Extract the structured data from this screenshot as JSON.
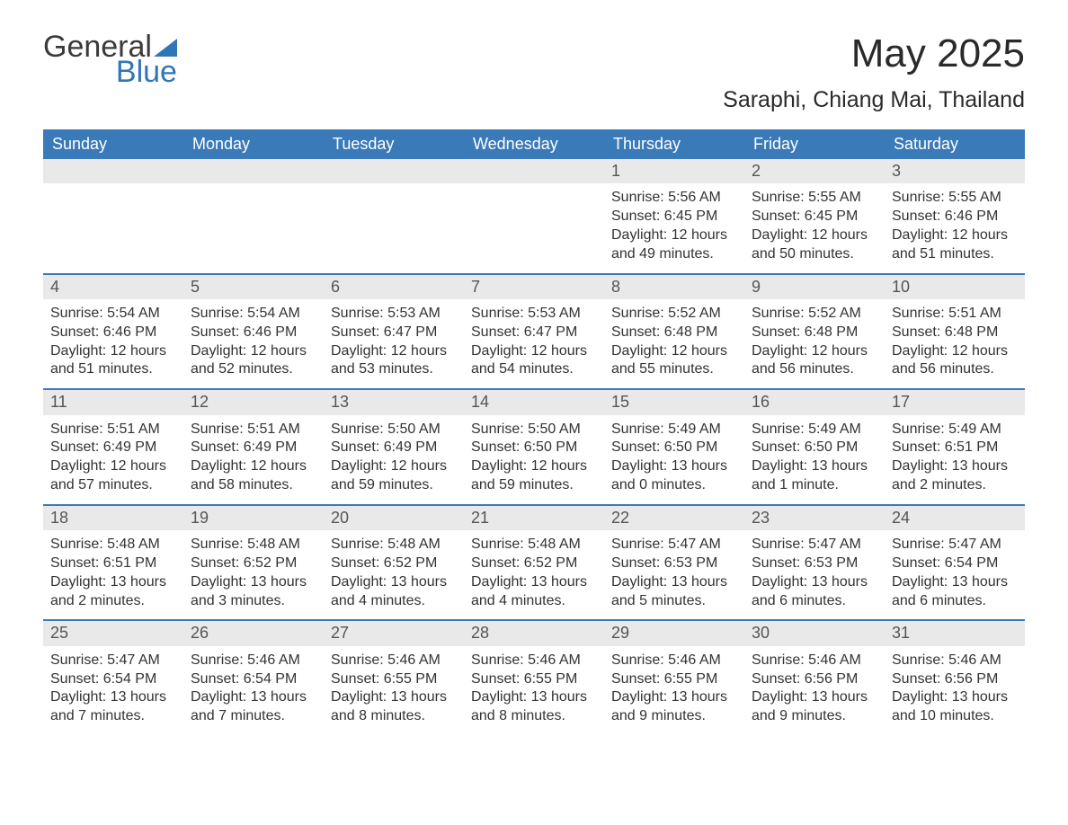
{
  "brand": {
    "part1": "General",
    "part2": "Blue"
  },
  "title": "May 2025",
  "location": "Saraphi, Chiang Mai, Thailand",
  "colors": {
    "header_bg": "#3a7ab8",
    "header_text": "#ffffff",
    "daynum_bg": "#e9e9e9",
    "daynum_text": "#555555",
    "body_text": "#333333",
    "week_border": "#3a7ab8",
    "brand_gray": "#3a3a3a",
    "brand_blue": "#2f76b6"
  },
  "typography": {
    "title_fontsize_pt": 33,
    "location_fontsize_pt": 19,
    "weekday_fontsize_pt": 14,
    "daynum_fontsize_pt": 14,
    "body_fontsize_pt": 12
  },
  "weekdays": [
    "Sunday",
    "Monday",
    "Tuesday",
    "Wednesday",
    "Thursday",
    "Friday",
    "Saturday"
  ],
  "weeks": [
    [
      null,
      null,
      null,
      null,
      {
        "n": "1",
        "sunrise": "5:56 AM",
        "sunset": "6:45 PM",
        "daylight": "12 hours and 49 minutes."
      },
      {
        "n": "2",
        "sunrise": "5:55 AM",
        "sunset": "6:45 PM",
        "daylight": "12 hours and 50 minutes."
      },
      {
        "n": "3",
        "sunrise": "5:55 AM",
        "sunset": "6:46 PM",
        "daylight": "12 hours and 51 minutes."
      }
    ],
    [
      {
        "n": "4",
        "sunrise": "5:54 AM",
        "sunset": "6:46 PM",
        "daylight": "12 hours and 51 minutes."
      },
      {
        "n": "5",
        "sunrise": "5:54 AM",
        "sunset": "6:46 PM",
        "daylight": "12 hours and 52 minutes."
      },
      {
        "n": "6",
        "sunrise": "5:53 AM",
        "sunset": "6:47 PM",
        "daylight": "12 hours and 53 minutes."
      },
      {
        "n": "7",
        "sunrise": "5:53 AM",
        "sunset": "6:47 PM",
        "daylight": "12 hours and 54 minutes."
      },
      {
        "n": "8",
        "sunrise": "5:52 AM",
        "sunset": "6:48 PM",
        "daylight": "12 hours and 55 minutes."
      },
      {
        "n": "9",
        "sunrise": "5:52 AM",
        "sunset": "6:48 PM",
        "daylight": "12 hours and 56 minutes."
      },
      {
        "n": "10",
        "sunrise": "5:51 AM",
        "sunset": "6:48 PM",
        "daylight": "12 hours and 56 minutes."
      }
    ],
    [
      {
        "n": "11",
        "sunrise": "5:51 AM",
        "sunset": "6:49 PM",
        "daylight": "12 hours and 57 minutes."
      },
      {
        "n": "12",
        "sunrise": "5:51 AM",
        "sunset": "6:49 PM",
        "daylight": "12 hours and 58 minutes."
      },
      {
        "n": "13",
        "sunrise": "5:50 AM",
        "sunset": "6:49 PM",
        "daylight": "12 hours and 59 minutes."
      },
      {
        "n": "14",
        "sunrise": "5:50 AM",
        "sunset": "6:50 PM",
        "daylight": "12 hours and 59 minutes."
      },
      {
        "n": "15",
        "sunrise": "5:49 AM",
        "sunset": "6:50 PM",
        "daylight": "13 hours and 0 minutes."
      },
      {
        "n": "16",
        "sunrise": "5:49 AM",
        "sunset": "6:50 PM",
        "daylight": "13 hours and 1 minute."
      },
      {
        "n": "17",
        "sunrise": "5:49 AM",
        "sunset": "6:51 PM",
        "daylight": "13 hours and 2 minutes."
      }
    ],
    [
      {
        "n": "18",
        "sunrise": "5:48 AM",
        "sunset": "6:51 PM",
        "daylight": "13 hours and 2 minutes."
      },
      {
        "n": "19",
        "sunrise": "5:48 AM",
        "sunset": "6:52 PM",
        "daylight": "13 hours and 3 minutes."
      },
      {
        "n": "20",
        "sunrise": "5:48 AM",
        "sunset": "6:52 PM",
        "daylight": "13 hours and 4 minutes."
      },
      {
        "n": "21",
        "sunrise": "5:48 AM",
        "sunset": "6:52 PM",
        "daylight": "13 hours and 4 minutes."
      },
      {
        "n": "22",
        "sunrise": "5:47 AM",
        "sunset": "6:53 PM",
        "daylight": "13 hours and 5 minutes."
      },
      {
        "n": "23",
        "sunrise": "5:47 AM",
        "sunset": "6:53 PM",
        "daylight": "13 hours and 6 minutes."
      },
      {
        "n": "24",
        "sunrise": "5:47 AM",
        "sunset": "6:54 PM",
        "daylight": "13 hours and 6 minutes."
      }
    ],
    [
      {
        "n": "25",
        "sunrise": "5:47 AM",
        "sunset": "6:54 PM",
        "daylight": "13 hours and 7 minutes."
      },
      {
        "n": "26",
        "sunrise": "5:46 AM",
        "sunset": "6:54 PM",
        "daylight": "13 hours and 7 minutes."
      },
      {
        "n": "27",
        "sunrise": "5:46 AM",
        "sunset": "6:55 PM",
        "daylight": "13 hours and 8 minutes."
      },
      {
        "n": "28",
        "sunrise": "5:46 AM",
        "sunset": "6:55 PM",
        "daylight": "13 hours and 8 minutes."
      },
      {
        "n": "29",
        "sunrise": "5:46 AM",
        "sunset": "6:55 PM",
        "daylight": "13 hours and 9 minutes."
      },
      {
        "n": "30",
        "sunrise": "5:46 AM",
        "sunset": "6:56 PM",
        "daylight": "13 hours and 9 minutes."
      },
      {
        "n": "31",
        "sunrise": "5:46 AM",
        "sunset": "6:56 PM",
        "daylight": "13 hours and 10 minutes."
      }
    ]
  ],
  "labels": {
    "sunrise": "Sunrise: ",
    "sunset": "Sunset: ",
    "daylight": "Daylight: "
  }
}
